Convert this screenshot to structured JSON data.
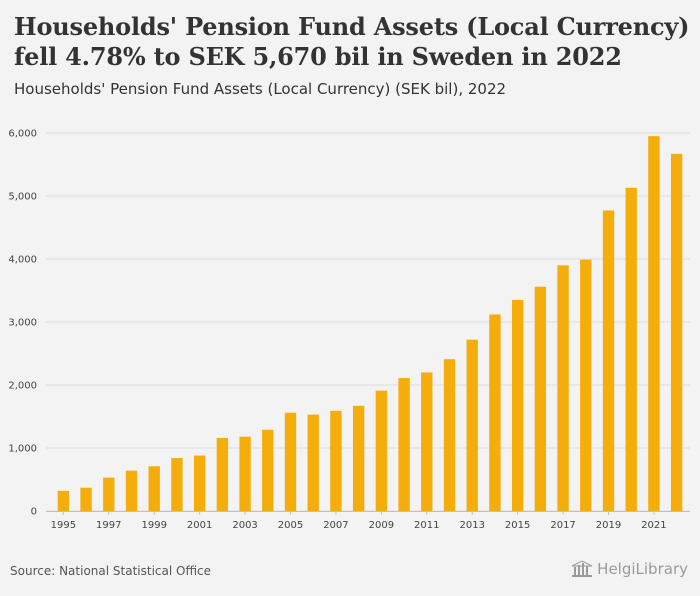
{
  "header": {
    "title": "Households' Pension Fund Assets (Local Currency) fell 4.78% to SEK 5,670 bil in Sweden in 2022",
    "subtitle": "Households' Pension Fund Assets (Local Currency) (SEK bil), 2022"
  },
  "footer": {
    "source": "Source: National Statistical Office",
    "brand": "HelgiLibrary"
  },
  "colors": {
    "bar": "#f5ad0b",
    "background": "#f3f3f3",
    "grid": "#dcdcdc"
  },
  "chart_data": {
    "type": "bar",
    "title": "Households' Pension Fund Assets (Local Currency) (SEK bil), 2022",
    "xlabel": "",
    "ylabel": "",
    "ylim": [
      0,
      6000
    ],
    "yticks": [
      0,
      1000,
      2000,
      3000,
      4000,
      5000,
      6000
    ],
    "ytick_labels": [
      "0",
      "1,000",
      "2,000",
      "3,000",
      "4,000",
      "5,000",
      "6,000"
    ],
    "grid": true,
    "categories": [
      "1995",
      "1996",
      "1997",
      "1998",
      "1999",
      "2000",
      "2001",
      "2002",
      "2003",
      "2004",
      "2005",
      "2006",
      "2007",
      "2008",
      "2009",
      "2010",
      "2011",
      "2012",
      "2013",
      "2014",
      "2015",
      "2016",
      "2017",
      "2018",
      "2019",
      "2020",
      "2021",
      "2022"
    ],
    "xtick_labels": [
      "1995",
      "1997",
      "1999",
      "2001",
      "2003",
      "2005",
      "2007",
      "2009",
      "2011",
      "2013",
      "2015",
      "2017",
      "2019",
      "2021"
    ],
    "values": [
      320,
      370,
      530,
      640,
      710,
      840,
      880,
      1160,
      1180,
      1290,
      1560,
      1530,
      1590,
      1670,
      1910,
      2110,
      2200,
      2410,
      2720,
      3120,
      3350,
      3560,
      3900,
      3990,
      4770,
      5130,
      5950,
      5670
    ]
  }
}
